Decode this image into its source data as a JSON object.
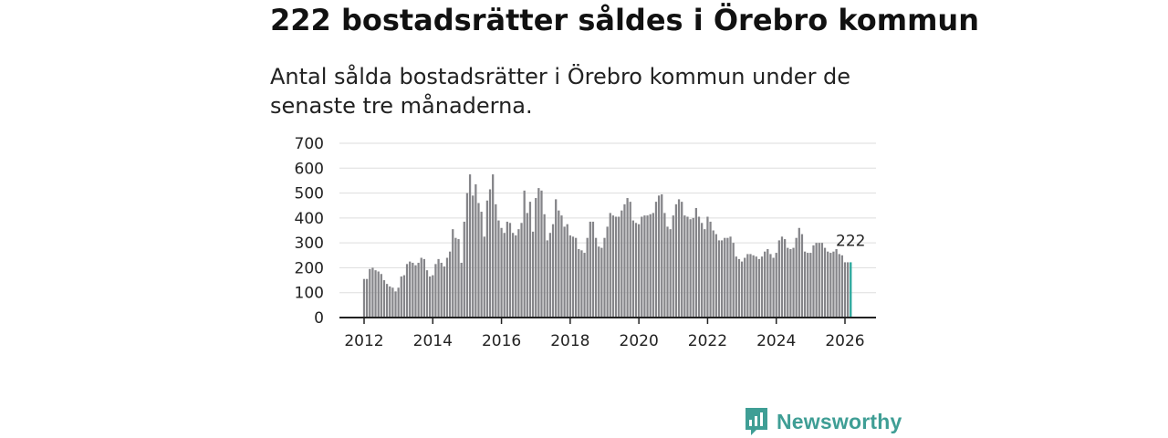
{
  "title": "222 bostadsrätter såldes i Örebro kommun",
  "subtitle": "Antal sålda bostadsrätter i Örebro kommun under de senaste tre månaderna.",
  "logo": {
    "text": "Newsworthy"
  },
  "colors": {
    "bar": "#858589",
    "highlight": "#26a69a",
    "grid": "#dddddd",
    "axis": "#222222"
  },
  "chart_data": {
    "type": "bar",
    "title": "222 bostadsrätter såldes i Örebro kommun",
    "xlabel": "",
    "ylabel": "",
    "ylim": [
      0,
      700
    ],
    "yticks": [
      0,
      100,
      200,
      300,
      400,
      500,
      600,
      700
    ],
    "xticks": [
      2012,
      2014,
      2016,
      2018,
      2020,
      2022,
      2024,
      2026
    ],
    "xlim": [
      2011.9,
      2026.9
    ],
    "start": {
      "year": 2012,
      "month": 1
    },
    "highlight_label": "222",
    "values": [
      155,
      155,
      195,
      200,
      190,
      185,
      175,
      150,
      135,
      125,
      120,
      105,
      120,
      165,
      170,
      215,
      225,
      220,
      210,
      220,
      240,
      235,
      190,
      165,
      170,
      215,
      235,
      220,
      205,
      240,
      265,
      355,
      320,
      315,
      220,
      385,
      500,
      575,
      490,
      535,
      460,
      425,
      325,
      470,
      515,
      575,
      455,
      390,
      360,
      340,
      385,
      380,
      340,
      330,
      355,
      380,
      510,
      420,
      465,
      345,
      480,
      520,
      510,
      415,
      310,
      340,
      375,
      475,
      430,
      410,
      365,
      375,
      330,
      325,
      320,
      275,
      270,
      260,
      320,
      385,
      385,
      320,
      285,
      280,
      320,
      365,
      420,
      410,
      405,
      405,
      430,
      455,
      480,
      465,
      390,
      380,
      375,
      405,
      410,
      410,
      415,
      420,
      465,
      490,
      495,
      420,
      365,
      355,
      410,
      455,
      475,
      465,
      410,
      405,
      395,
      400,
      440,
      405,
      380,
      355,
      405,
      385,
      350,
      335,
      310,
      310,
      320,
      320,
      325,
      300,
      245,
      235,
      225,
      240,
      255,
      255,
      250,
      245,
      235,
      245,
      265,
      275,
      255,
      240,
      260,
      310,
      325,
      315,
      280,
      275,
      280,
      320,
      360,
      335,
      265,
      260,
      260,
      290,
      300,
      300,
      300,
      280,
      265,
      260,
      265,
      275,
      255,
      250,
      222,
      222,
      222
    ]
  }
}
